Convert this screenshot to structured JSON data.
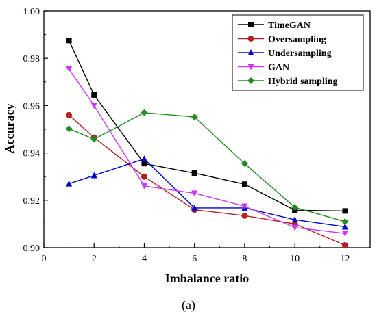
{
  "chart_data": {
    "type": "line",
    "xlabel": "Imbalance ratio",
    "ylabel": "Accuracy",
    "caption": "(a)",
    "xlim": [
      0,
      13
    ],
    "ylim": [
      0.9,
      1.0
    ],
    "x_ticks": [
      0,
      2,
      4,
      6,
      8,
      10,
      12
    ],
    "y_ticks": [
      0.9,
      0.92,
      0.94,
      0.96,
      0.98,
      1.0
    ],
    "y_tick_labels": [
      "0.90",
      "0.92",
      "0.94",
      "0.96",
      "0.98",
      "1.00"
    ],
    "grid": false,
    "legend_position": "top-right",
    "x": [
      1,
      2,
      4,
      6,
      8,
      10,
      12
    ],
    "series": [
      {
        "name": "TimeGAN",
        "color": "#000000",
        "marker": "square",
        "values": [
          0.9875,
          0.9645,
          0.9355,
          0.9315,
          0.9268,
          0.9158,
          0.9155
        ]
      },
      {
        "name": "Oversampling",
        "color": "#b22222",
        "marker": "circle",
        "values": [
          0.956,
          0.9465,
          0.93,
          0.916,
          0.9135,
          0.91,
          0.901
        ]
      },
      {
        "name": "Undersampling",
        "color": "#0000cc",
        "marker": "triangle-up",
        "values": [
          0.927,
          0.9305,
          0.9375,
          0.9168,
          0.9168,
          0.9118,
          0.9088
        ]
      },
      {
        "name": "GAN",
        "color": "#cc33ff",
        "marker": "triangle-down",
        "values": [
          0.9755,
          0.96,
          0.926,
          0.923,
          0.9175,
          0.9085,
          0.906
        ]
      },
      {
        "name": "Hybrid sampling",
        "color": "#228b22",
        "marker": "diamond",
        "values": [
          0.9502,
          0.9458,
          0.957,
          0.9552,
          0.9355,
          0.917,
          0.911
        ]
      }
    ]
  }
}
